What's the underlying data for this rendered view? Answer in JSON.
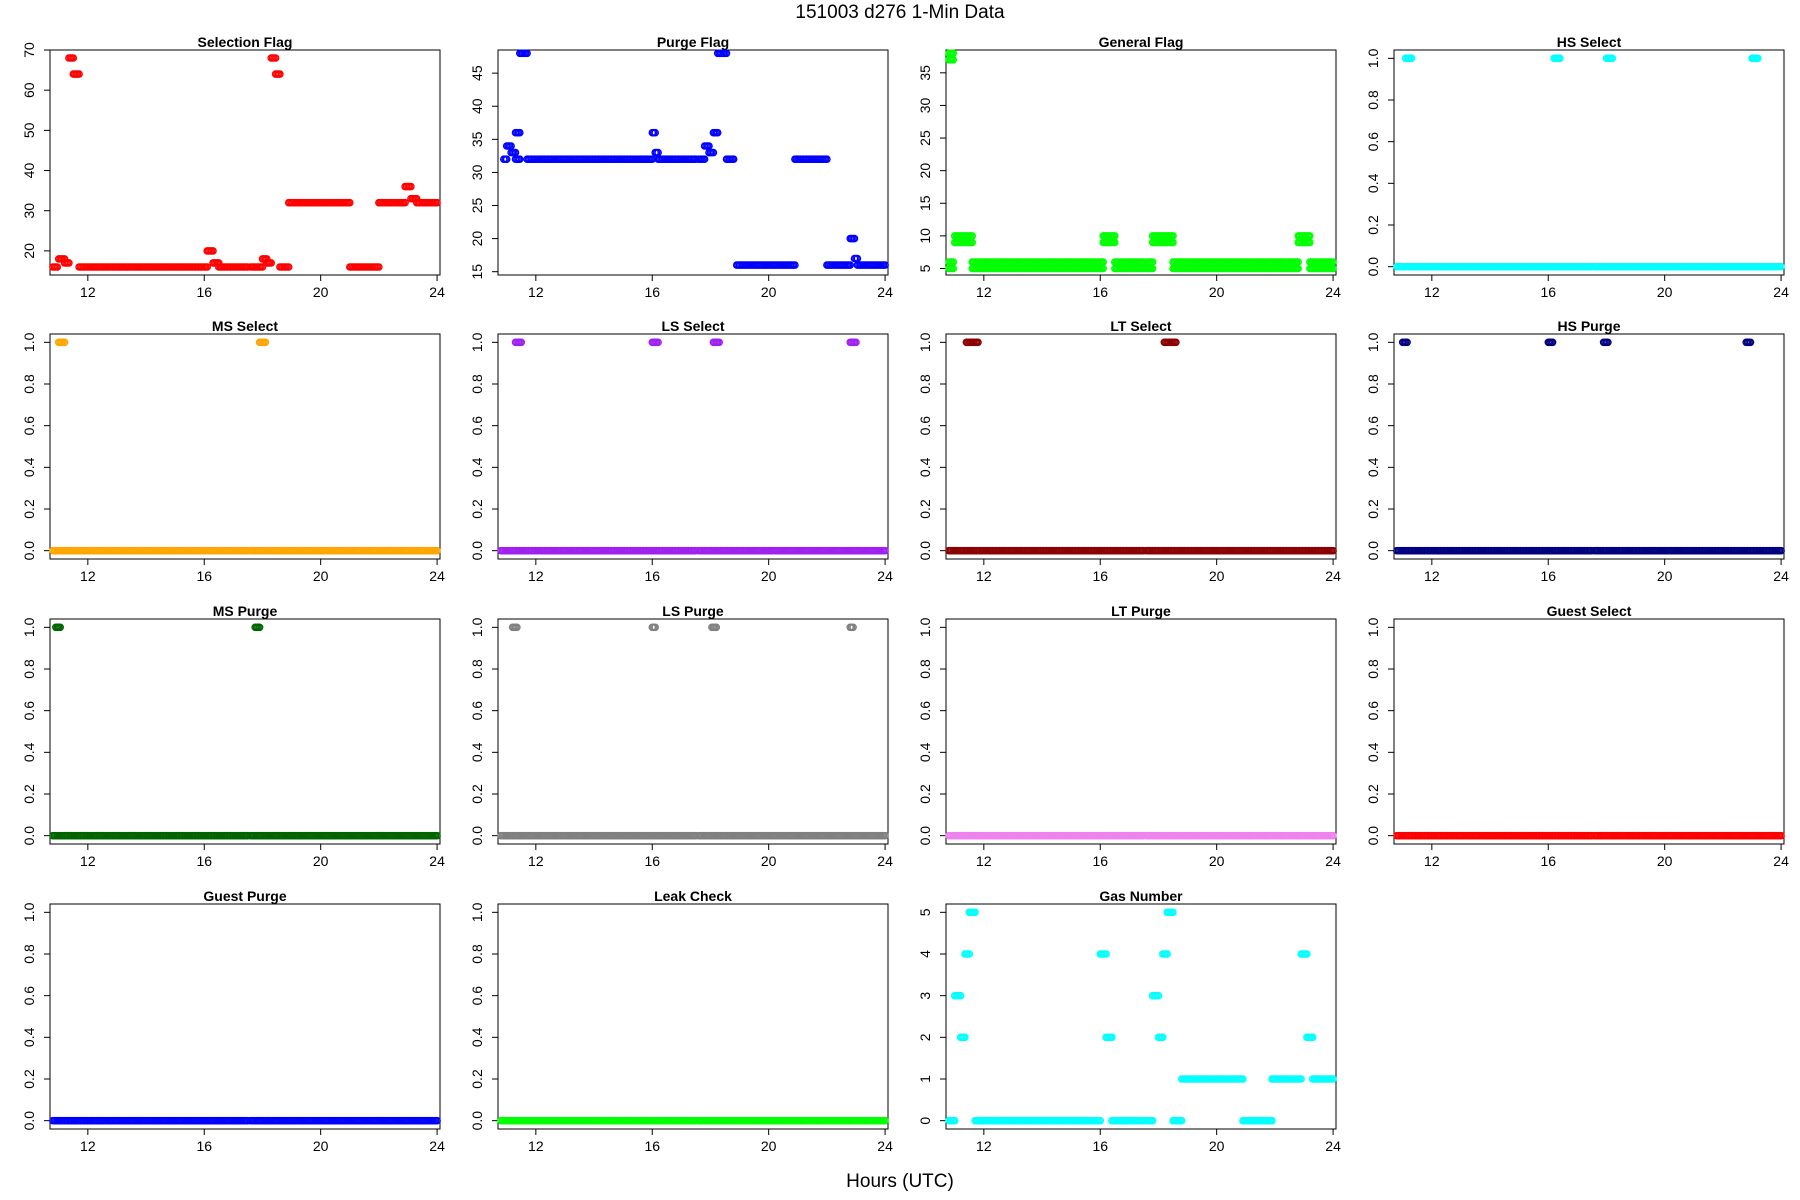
{
  "header": {
    "title": "151003   d276   1-Min Data"
  },
  "footer": {
    "xlabel": "Hours (UTC)"
  },
  "chart_data": [
    {
      "type": "scatter",
      "title": "Selection Flag",
      "color": "#ff0000",
      "ylim": [
        14,
        70
      ],
      "yticks": [
        20,
        30,
        40,
        50,
        60,
        70
      ],
      "xlim": [
        10.7,
        24.1
      ],
      "xticks": [
        12,
        16,
        20,
        24
      ],
      "segments": [
        [
          10.8,
          10.95,
          16
        ],
        [
          11.0,
          11.2,
          18
        ],
        [
          11.2,
          11.35,
          17
        ],
        [
          11.35,
          11.5,
          68
        ],
        [
          11.5,
          11.7,
          64
        ],
        [
          11.7,
          16.1,
          16
        ],
        [
          16.1,
          16.3,
          20
        ],
        [
          16.3,
          16.5,
          17
        ],
        [
          16.5,
          17.5,
          16
        ],
        [
          17.6,
          18.0,
          16
        ],
        [
          18.0,
          18.15,
          18
        ],
        [
          18.15,
          18.3,
          17
        ],
        [
          18.3,
          18.45,
          68
        ],
        [
          18.45,
          18.6,
          64
        ],
        [
          18.6,
          18.9,
          16
        ],
        [
          18.9,
          21.0,
          32
        ],
        [
          21.0,
          22.0,
          16
        ],
        [
          22.0,
          22.9,
          32
        ],
        [
          22.9,
          23.1,
          36
        ],
        [
          23.1,
          23.3,
          33
        ],
        [
          23.3,
          24.0,
          32
        ]
      ]
    },
    {
      "type": "scatter",
      "title": "Purge Flag",
      "color": "#0000ff",
      "ylim": [
        14.5,
        48.5
      ],
      "yticks": [
        15,
        20,
        25,
        30,
        35,
        40,
        45
      ],
      "xlim": [
        10.7,
        24.1
      ],
      "xticks": [
        12,
        16,
        20,
        24
      ],
      "segments": [
        [
          10.9,
          11.0,
          32
        ],
        [
          11.0,
          11.15,
          34
        ],
        [
          11.15,
          11.3,
          33
        ],
        [
          11.3,
          11.45,
          32
        ],
        [
          11.3,
          11.45,
          36
        ],
        [
          11.45,
          11.7,
          48
        ],
        [
          11.7,
          16.0,
          32
        ],
        [
          16.0,
          16.1,
          36
        ],
        [
          16.1,
          16.2,
          33
        ],
        [
          16.2,
          17.5,
          32
        ],
        [
          17.6,
          17.8,
          32
        ],
        [
          17.8,
          17.95,
          34
        ],
        [
          17.95,
          18.1,
          33
        ],
        [
          18.1,
          18.25,
          36
        ],
        [
          18.25,
          18.55,
          48
        ],
        [
          18.55,
          18.8,
          32
        ],
        [
          18.9,
          20.9,
          16
        ],
        [
          20.9,
          22.0,
          32
        ],
        [
          22.0,
          22.8,
          16
        ],
        [
          22.8,
          22.95,
          20
        ],
        [
          22.95,
          23.05,
          17
        ],
        [
          23.05,
          24.0,
          16
        ]
      ]
    },
    {
      "type": "scatter",
      "title": "General Flag",
      "color": "#00ff00",
      "ylim": [
        4,
        38.5
      ],
      "yticks": [
        5,
        10,
        15,
        20,
        25,
        30,
        35
      ],
      "xlim": [
        10.7,
        24.1
      ],
      "xticks": [
        12,
        16,
        20,
        24
      ],
      "segments": [
        [
          10.8,
          10.95,
          38
        ],
        [
          10.8,
          10.95,
          37
        ],
        [
          10.8,
          10.95,
          6
        ],
        [
          10.8,
          10.95,
          5
        ],
        [
          11.0,
          11.6,
          10
        ],
        [
          11.0,
          11.6,
          9
        ],
        [
          11.6,
          16.1,
          6
        ],
        [
          11.6,
          16.1,
          5
        ],
        [
          16.1,
          16.5,
          10
        ],
        [
          16.1,
          16.5,
          9
        ],
        [
          16.5,
          17.5,
          6
        ],
        [
          16.5,
          17.5,
          5
        ],
        [
          17.6,
          17.8,
          6
        ],
        [
          17.6,
          17.8,
          5
        ],
        [
          17.8,
          18.5,
          10
        ],
        [
          17.8,
          18.5,
          9
        ],
        [
          18.5,
          22.8,
          6
        ],
        [
          18.5,
          22.8,
          5
        ],
        [
          22.8,
          23.2,
          10
        ],
        [
          22.8,
          23.2,
          9
        ],
        [
          23.2,
          24.0,
          6
        ],
        [
          23.2,
          24.0,
          5
        ]
      ]
    },
    {
      "type": "scatter",
      "title": "HS Select",
      "color": "#00ffff",
      "ylim": [
        -0.04,
        1.04
      ],
      "yticks": [
        0.0,
        0.2,
        0.4,
        0.6,
        0.8,
        1.0
      ],
      "xlim": [
        10.7,
        24.1
      ],
      "xticks": [
        12,
        16,
        20,
        24
      ],
      "segments": [
        [
          10.8,
          17.5,
          0
        ],
        [
          17.6,
          24.0,
          0
        ],
        [
          11.1,
          11.3,
          1
        ],
        [
          16.2,
          16.4,
          1
        ],
        [
          18.0,
          18.2,
          1
        ],
        [
          23.0,
          23.2,
          1
        ]
      ]
    },
    {
      "type": "scatter",
      "title": "MS Select",
      "color": "#ffa500",
      "ylim": [
        -0.04,
        1.04
      ],
      "yticks": [
        0.0,
        0.2,
        0.4,
        0.6,
        0.8,
        1.0
      ],
      "xlim": [
        10.7,
        24.1
      ],
      "xticks": [
        12,
        16,
        20,
        24
      ],
      "segments": [
        [
          10.8,
          17.5,
          0
        ],
        [
          17.6,
          24.0,
          0
        ],
        [
          11.0,
          11.2,
          1
        ],
        [
          17.9,
          18.1,
          1
        ]
      ]
    },
    {
      "type": "scatter",
      "title": "LS Select",
      "color": "#a020f0",
      "ylim": [
        -0.04,
        1.04
      ],
      "yticks": [
        0.0,
        0.2,
        0.4,
        0.6,
        0.8,
        1.0
      ],
      "xlim": [
        10.7,
        24.1
      ],
      "xticks": [
        12,
        16,
        20,
        24
      ],
      "segments": [
        [
          10.8,
          17.5,
          0
        ],
        [
          17.6,
          24.0,
          0
        ],
        [
          11.3,
          11.5,
          1
        ],
        [
          16.0,
          16.2,
          1
        ],
        [
          18.1,
          18.3,
          1
        ],
        [
          22.8,
          23.0,
          1
        ]
      ]
    },
    {
      "type": "scatter",
      "title": "LT Select",
      "color": "#8b0000",
      "ylim": [
        -0.04,
        1.04
      ],
      "yticks": [
        0.0,
        0.2,
        0.4,
        0.6,
        0.8,
        1.0
      ],
      "xlim": [
        10.7,
        24.1
      ],
      "xticks": [
        12,
        16,
        20,
        24
      ],
      "segments": [
        [
          10.8,
          17.5,
          0
        ],
        [
          17.6,
          24.0,
          0
        ],
        [
          11.4,
          11.8,
          1
        ],
        [
          18.2,
          18.6,
          1
        ]
      ]
    },
    {
      "type": "scatter",
      "title": "HS Purge",
      "color": "#000080",
      "ylim": [
        -0.04,
        1.04
      ],
      "yticks": [
        0.0,
        0.2,
        0.4,
        0.6,
        0.8,
        1.0
      ],
      "xlim": [
        10.7,
        24.1
      ],
      "xticks": [
        12,
        16,
        20,
        24
      ],
      "segments": [
        [
          10.8,
          17.5,
          0
        ],
        [
          17.6,
          24.0,
          0
        ],
        [
          11.0,
          11.15,
          1
        ],
        [
          16.0,
          16.15,
          1
        ],
        [
          17.9,
          18.05,
          1
        ],
        [
          22.8,
          22.95,
          1
        ]
      ]
    },
    {
      "type": "scatter",
      "title": "MS Purge",
      "color": "#006400",
      "ylim": [
        -0.04,
        1.04
      ],
      "yticks": [
        0.0,
        0.2,
        0.4,
        0.6,
        0.8,
        1.0
      ],
      "xlim": [
        10.7,
        24.1
      ],
      "xticks": [
        12,
        16,
        20,
        24
      ],
      "segments": [
        [
          10.8,
          17.5,
          0
        ],
        [
          17.6,
          24.0,
          0
        ],
        [
          10.9,
          11.05,
          1
        ],
        [
          17.75,
          17.9,
          1
        ]
      ]
    },
    {
      "type": "scatter",
      "title": "LS Purge",
      "color": "#808080",
      "ylim": [
        -0.04,
        1.04
      ],
      "yticks": [
        0.0,
        0.2,
        0.4,
        0.6,
        0.8,
        1.0
      ],
      "xlim": [
        10.7,
        24.1
      ],
      "xticks": [
        12,
        16,
        20,
        24
      ],
      "segments": [
        [
          10.8,
          17.5,
          0
        ],
        [
          17.6,
          24.0,
          0
        ],
        [
          11.2,
          11.35,
          1
        ],
        [
          16.0,
          16.1,
          1
        ],
        [
          18.05,
          18.2,
          1
        ],
        [
          22.8,
          22.9,
          1
        ]
      ]
    },
    {
      "type": "scatter",
      "title": "LT Purge",
      "color": "#ee82ee",
      "ylim": [
        -0.04,
        1.04
      ],
      "yticks": [
        0.0,
        0.2,
        0.4,
        0.6,
        0.8,
        1.0
      ],
      "xlim": [
        10.7,
        24.1
      ],
      "xticks": [
        12,
        16,
        20,
        24
      ],
      "segments": [
        [
          10.8,
          17.5,
          0
        ],
        [
          17.6,
          24.0,
          0
        ]
      ]
    },
    {
      "type": "scatter",
      "title": "Guest Select",
      "color": "#ff0000",
      "ylim": [
        -0.04,
        1.04
      ],
      "yticks": [
        0.0,
        0.2,
        0.4,
        0.6,
        0.8,
        1.0
      ],
      "xlim": [
        10.7,
        24.1
      ],
      "xticks": [
        12,
        16,
        20,
        24
      ],
      "segments": [
        [
          10.8,
          17.5,
          0
        ],
        [
          17.6,
          24.0,
          0
        ]
      ]
    },
    {
      "type": "scatter",
      "title": "Guest Purge",
      "color": "#0000ff",
      "ylim": [
        -0.04,
        1.04
      ],
      "yticks": [
        0.0,
        0.2,
        0.4,
        0.6,
        0.8,
        1.0
      ],
      "xlim": [
        10.7,
        24.1
      ],
      "xticks": [
        12,
        16,
        20,
        24
      ],
      "segments": [
        [
          10.8,
          17.5,
          0
        ],
        [
          17.6,
          24.0,
          0
        ]
      ]
    },
    {
      "type": "scatter",
      "title": "Leak Check",
      "color": "#00ff00",
      "ylim": [
        -0.04,
        1.04
      ],
      "yticks": [
        0.0,
        0.2,
        0.4,
        0.6,
        0.8,
        1.0
      ],
      "xlim": [
        10.7,
        24.1
      ],
      "xticks": [
        12,
        16,
        20,
        24
      ],
      "segments": [
        [
          10.8,
          17.5,
          0
        ],
        [
          17.6,
          24.0,
          0
        ]
      ]
    },
    {
      "type": "scatter",
      "title": "Gas Number",
      "color": "#00ffff",
      "ylim": [
        -0.2,
        5.2
      ],
      "yticks": [
        0,
        1,
        2,
        3,
        4,
        5
      ],
      "xlim": [
        10.7,
        24.1
      ],
      "xticks": [
        12,
        16,
        20,
        24
      ],
      "segments": [
        [
          10.8,
          11.0,
          0
        ],
        [
          11.0,
          11.2,
          3
        ],
        [
          11.2,
          11.35,
          2
        ],
        [
          11.35,
          11.5,
          4
        ],
        [
          11.5,
          11.7,
          5
        ],
        [
          11.7,
          16.0,
          0
        ],
        [
          16.0,
          16.2,
          4
        ],
        [
          16.2,
          16.4,
          2
        ],
        [
          16.4,
          17.5,
          0
        ],
        [
          17.6,
          17.8,
          0
        ],
        [
          17.8,
          18.0,
          3
        ],
        [
          18.0,
          18.15,
          2
        ],
        [
          18.15,
          18.3,
          4
        ],
        [
          18.3,
          18.5,
          5
        ],
        [
          18.5,
          18.8,
          0
        ],
        [
          18.8,
          20.9,
          1
        ],
        [
          20.9,
          21.9,
          0
        ],
        [
          21.9,
          22.9,
          1
        ],
        [
          22.9,
          23.1,
          4
        ],
        [
          23.1,
          23.3,
          2
        ],
        [
          23.3,
          24.0,
          1
        ]
      ]
    }
  ]
}
